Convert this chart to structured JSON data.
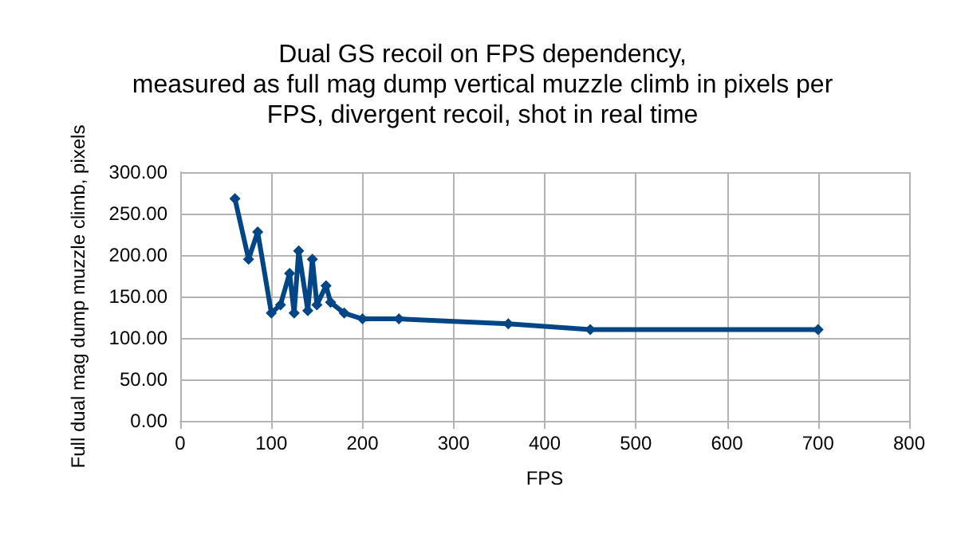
{
  "chart_data": {
    "type": "line",
    "title": "Dual GS recoil on FPS dependency,\nmeasured as full mag dump vertical muzzle climb in pixels per\nFPS, divergent recoil, shot in real time",
    "xlabel": "FPS",
    "ylabel": "Full dual mag dump muzzle climb, pixels",
    "x": [
      60,
      75,
      85,
      100,
      110,
      120,
      125,
      130,
      140,
      145,
      150,
      160,
      165,
      180,
      200,
      240,
      360,
      450,
      700
    ],
    "series": [
      {
        "color": "#004586",
        "values": [
          268,
          195,
          228,
          130,
          140,
          178,
          130,
          205,
          133,
          195,
          140,
          163,
          143,
          130,
          123,
          123,
          117,
          110,
          110
        ]
      }
    ],
    "xlim": [
      0,
      800
    ],
    "xticks": [
      0,
      100,
      200,
      300,
      400,
      500,
      600,
      700,
      800
    ],
    "ylim": [
      0,
      300
    ],
    "yticks": [
      {
        "value": 0,
        "label": "0.00"
      },
      {
        "value": 50,
        "label": "50.00"
      },
      {
        "value": 100,
        "label": "100.00"
      },
      {
        "value": 150,
        "label": "150.00"
      },
      {
        "value": 200,
        "label": "200.00"
      },
      {
        "value": 250,
        "label": "250.00"
      },
      {
        "value": 300,
        "label": "300.00"
      }
    ],
    "grid": true,
    "marker": "diamond",
    "line_style": "solid"
  }
}
